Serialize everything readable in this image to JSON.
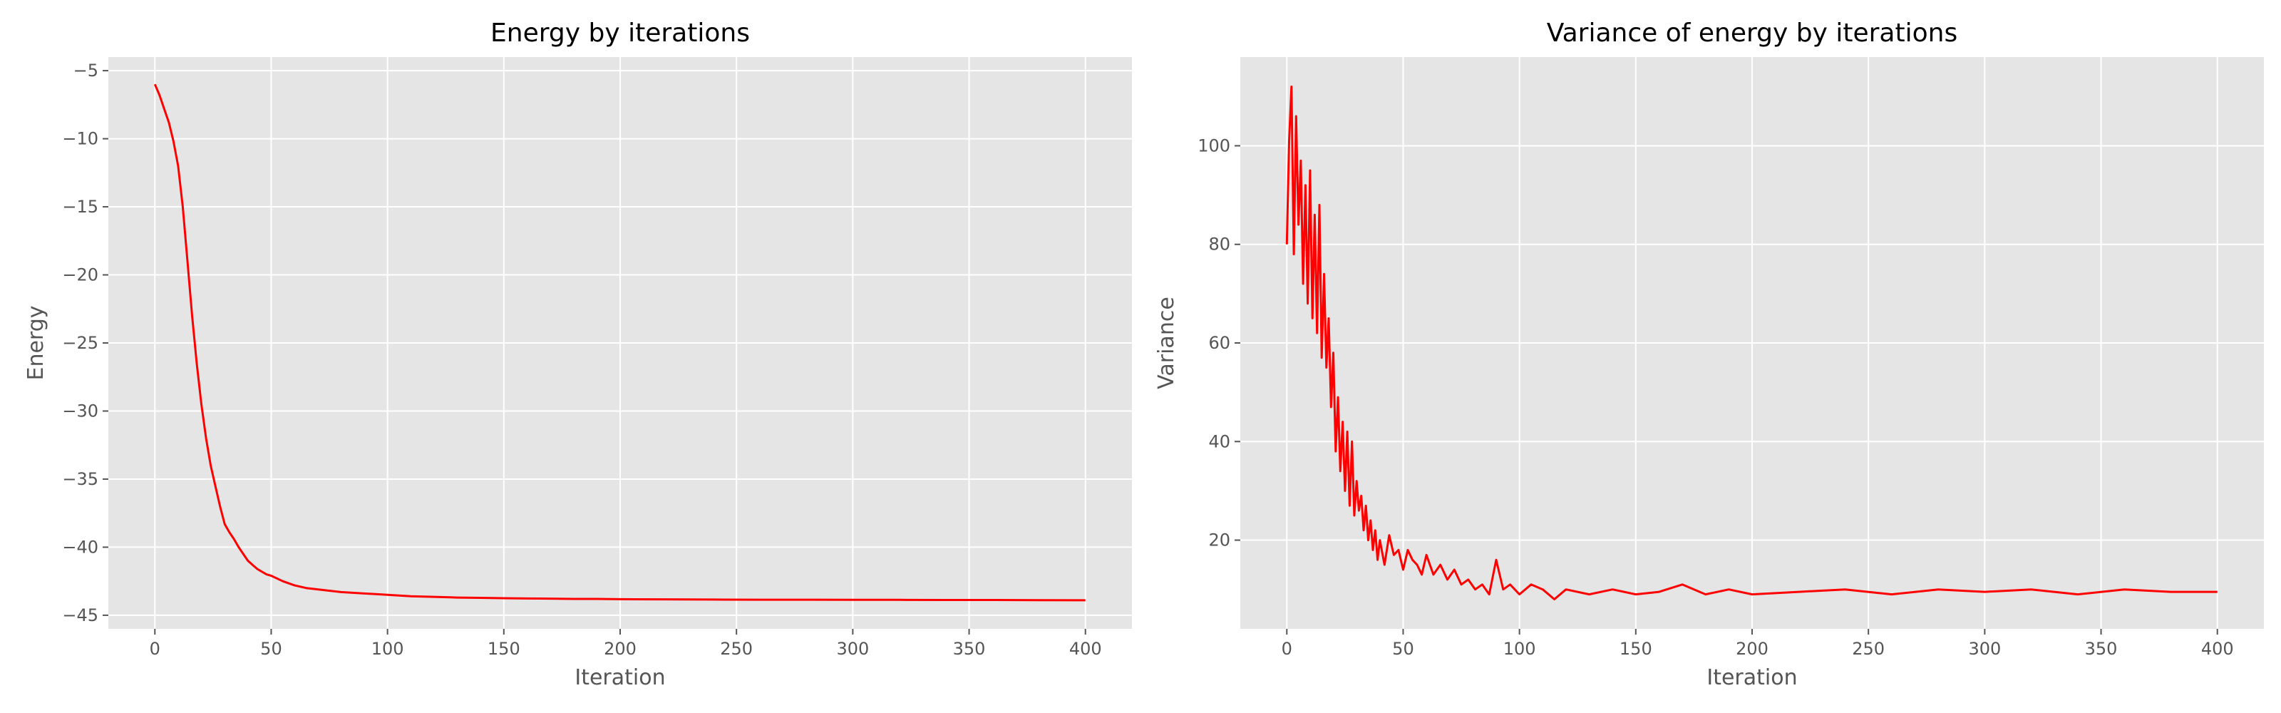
{
  "colors": {
    "plot_background": "#e5e5e5",
    "grid": "#ffffff",
    "line": "#ff0000",
    "tick_text": "#555555",
    "tick_mark": "#555555"
  },
  "chart_data": [
    {
      "type": "line",
      "title": "Energy by iterations",
      "xlabel": "Iteration",
      "ylabel": "Energy",
      "xlim": [
        -20,
        420
      ],
      "ylim": [
        -46,
        -4
      ],
      "xticks": [
        0,
        50,
        100,
        150,
        200,
        250,
        300,
        350,
        400
      ],
      "yticks": [
        -5,
        -10,
        -15,
        -20,
        -25,
        -30,
        -35,
        -40,
        -45
      ],
      "grid": true,
      "legend": "none",
      "series": [
        {
          "color": "#ff0000",
          "x": [
            0,
            2,
            4,
            6,
            8,
            10,
            12,
            14,
            16,
            18,
            20,
            22,
            24,
            26,
            28,
            30,
            32,
            34,
            36,
            38,
            40,
            42,
            44,
            46,
            48,
            50,
            55,
            60,
            65,
            70,
            75,
            80,
            85,
            90,
            95,
            100,
            110,
            120,
            130,
            140,
            150,
            160,
            170,
            180,
            190,
            200,
            220,
            240,
            260,
            280,
            300,
            320,
            340,
            360,
            380,
            400
          ],
          "y": [
            -6,
            -6.8,
            -7.8,
            -8.8,
            -10.2,
            -12,
            -15,
            -19,
            -23,
            -26.5,
            -29.5,
            -32,
            -34,
            -35.5,
            -37,
            -38.3,
            -38.9,
            -39.4,
            -40,
            -40.5,
            -41,
            -41.3,
            -41.6,
            -41.8,
            -42,
            -42.1,
            -42.5,
            -42.8,
            -43.0,
            -43.1,
            -43.2,
            -43.3,
            -43.35,
            -43.4,
            -43.45,
            -43.5,
            -43.6,
            -43.65,
            -43.7,
            -43.72,
            -43.75,
            -43.77,
            -43.78,
            -43.8,
            -43.8,
            -43.82,
            -43.83,
            -43.85,
            -43.86,
            -43.86,
            -43.87,
            -43.87,
            -43.88,
            -43.88,
            -43.89,
            -43.9
          ]
        }
      ]
    },
    {
      "type": "line",
      "title": "Variance of energy by iterations",
      "xlabel": "Iteration",
      "ylabel": "Variance",
      "xlim": [
        -20,
        420
      ],
      "ylim": [
        2,
        118
      ],
      "xticks": [
        0,
        50,
        100,
        150,
        200,
        250,
        300,
        350,
        400
      ],
      "yticks": [
        20,
        40,
        60,
        80,
        100
      ],
      "grid": true,
      "legend": "none",
      "series": [
        {
          "color": "#ff0000",
          "x": [
            0,
            1,
            2,
            3,
            4,
            5,
            6,
            7,
            8,
            9,
            10,
            11,
            12,
            13,
            14,
            15,
            16,
            17,
            18,
            19,
            20,
            21,
            22,
            23,
            24,
            25,
            26,
            27,
            28,
            29,
            30,
            31,
            32,
            33,
            34,
            35,
            36,
            37,
            38,
            39,
            40,
            42,
            44,
            46,
            48,
            50,
            52,
            54,
            56,
            58,
            60,
            63,
            66,
            69,
            72,
            75,
            78,
            81,
            84,
            87,
            90,
            93,
            96,
            100,
            105,
            110,
            115,
            120,
            130,
            140,
            150,
            160,
            170,
            180,
            190,
            200,
            220,
            240,
            260,
            280,
            300,
            320,
            340,
            360,
            380,
            400
          ],
          "y": [
            80,
            101,
            112,
            78,
            106,
            84,
            97,
            72,
            92,
            68,
            95,
            65,
            86,
            62,
            88,
            57,
            74,
            55,
            65,
            47,
            58,
            38,
            49,
            34,
            44,
            30,
            42,
            27,
            40,
            25,
            32,
            26,
            29,
            22,
            27,
            20,
            24,
            18,
            22,
            16,
            20,
            15,
            21,
            17,
            18,
            14,
            18,
            16,
            15,
            13,
            17,
            13,
            15,
            12,
            14,
            11,
            12,
            10,
            11,
            9,
            16,
            10,
            11,
            9,
            11,
            10,
            8,
            10,
            9,
            10,
            9,
            9.5,
            11,
            9,
            10,
            9,
            9.5,
            10,
            9,
            10,
            9.5,
            10,
            9,
            10,
            9.5,
            9.5
          ]
        }
      ]
    }
  ]
}
